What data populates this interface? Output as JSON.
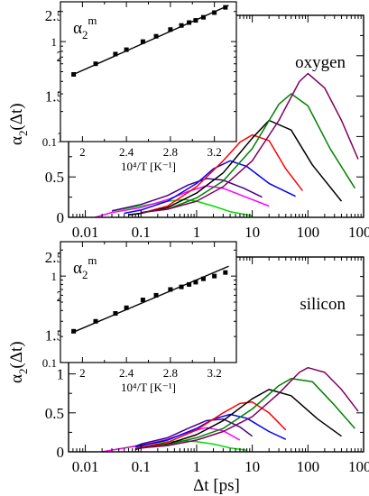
{
  "chart_data": [
    {
      "id": "oxygen",
      "type": "line",
      "annotation": "oxygen",
      "xlabel": "Δt [ps]",
      "ylabel": "α2(Δt)",
      "xscale": "log",
      "xlim": [
        0.005,
        1000
      ],
      "ylim": [
        0,
        2.5
      ],
      "xticks": [
        0.01,
        0.1,
        1,
        10,
        100,
        1000
      ],
      "xticklabels": [
        "0.01",
        "0.1",
        "1",
        "10",
        "100",
        "1000"
      ],
      "yticks": [
        0,
        0.5,
        1,
        1.5,
        2,
        2.5
      ],
      "yticklabels": [
        "0",
        "0.5",
        "1",
        "1.5",
        "2",
        "2.5"
      ],
      "show_xticklabels": false,
      "series": [
        {
          "color": "#00dd00",
          "x": [
            0.03,
            0.1,
            0.3,
            0.6,
            1,
            2,
            4,
            10
          ],
          "y": [
            0.08,
            0.14,
            0.2,
            0.22,
            0.2,
            0.14,
            0.07,
            0.02
          ]
        },
        {
          "color": "#ff00ff",
          "x": [
            0.015,
            0.03,
            0.1,
            0.3,
            0.7,
            1.5,
            3,
            6,
            20
          ],
          "y": [
            0.0,
            0.06,
            0.12,
            0.22,
            0.32,
            0.39,
            0.36,
            0.28,
            0.14
          ]
        },
        {
          "color": "#4b0082",
          "x": [
            0.03,
            0.1,
            0.3,
            0.7,
            1.5,
            3,
            7,
            15
          ],
          "y": [
            0.08,
            0.16,
            0.27,
            0.4,
            0.48,
            0.46,
            0.36,
            0.25
          ]
        },
        {
          "color": "#0000ff",
          "x": [
            0.05,
            0.1,
            0.3,
            1,
            2,
            4,
            8,
            20,
            60
          ],
          "y": [
            0.05,
            0.09,
            0.2,
            0.42,
            0.6,
            0.7,
            0.63,
            0.42,
            0.26
          ]
        },
        {
          "color": "#ff0000",
          "x": [
            0.06,
            0.1,
            0.3,
            1,
            3,
            6,
            10,
            20,
            40,
            80
          ],
          "y": [
            0.03,
            0.05,
            0.14,
            0.38,
            0.7,
            0.93,
            1.02,
            0.95,
            0.6,
            0.33
          ]
        },
        {
          "color": "#000000",
          "x": [
            0.06,
            0.1,
            0.3,
            1,
            3,
            10,
            20,
            50,
            120,
            400
          ],
          "y": [
            0.03,
            0.05,
            0.12,
            0.3,
            0.55,
            0.98,
            1.2,
            1.08,
            0.65,
            0.2
          ]
        },
        {
          "color": "#008000",
          "x": [
            0.1,
            0.3,
            1,
            3,
            10,
            30,
            50,
            100,
            250,
            700
          ],
          "y": [
            0.06,
            0.1,
            0.24,
            0.45,
            0.85,
            1.4,
            1.53,
            1.38,
            0.85,
            0.36
          ]
        },
        {
          "color": "#800060",
          "x": [
            0.1,
            0.3,
            1,
            3,
            10,
            30,
            70,
            100,
            200,
            400,
            800
          ],
          "y": [
            0.06,
            0.1,
            0.2,
            0.38,
            0.7,
            1.2,
            1.68,
            1.78,
            1.6,
            1.2,
            0.72
          ]
        }
      ]
    },
    {
      "id": "oxygen-inset",
      "type": "scatter",
      "label": "α2m",
      "xlabel": "10⁴/T [K⁻¹]",
      "yscale": "log",
      "xlim": [
        1.8,
        3.4
      ],
      "ylim": [
        0.1,
        2.5
      ],
      "xticks": [
        2,
        2.4,
        2.8,
        3.2
      ],
      "xticklabels": [
        "2",
        "2.4",
        "2.8",
        "3.2"
      ],
      "yticks": [
        0.1,
        1
      ],
      "yticklabels": [
        "0.1",
        "1"
      ],
      "x": [
        1.92,
        2.12,
        2.3,
        2.4,
        2.55,
        2.67,
        2.8,
        2.9,
        2.97,
        3.03,
        3.1,
        3.2,
        3.3
      ],
      "y": [
        0.47,
        0.6,
        0.75,
        0.83,
        1.0,
        1.13,
        1.32,
        1.45,
        1.55,
        1.63,
        1.75,
        1.95,
        2.2
      ],
      "fit": {
        "x": [
          1.9,
          3.33
        ],
        "y": [
          0.46,
          2.3
        ]
      }
    },
    {
      "id": "silicon",
      "type": "line",
      "annotation": "silicon",
      "xlabel": "Δt [ps]",
      "ylabel": "α2(Δt)",
      "xscale": "log",
      "xlim": [
        0.005,
        1000
      ],
      "ylim": [
        0,
        2.5
      ],
      "xticks": [
        0.01,
        0.1,
        1,
        10,
        100,
        1000
      ],
      "xticklabels": [
        "0.01",
        "0.1",
        "1",
        "10",
        "100",
        "1000"
      ],
      "yticks": [
        0,
        0.5,
        1,
        1.5,
        2,
        2.5
      ],
      "yticklabels": [
        "0",
        "0.5",
        "1",
        "1.5",
        "2",
        "2.5"
      ],
      "show_xticklabels": true,
      "series": [
        {
          "color": "#00dd00",
          "x": [
            0.05,
            0.1,
            0.3,
            0.6,
            1,
            2,
            4,
            8
          ],
          "y": [
            0.05,
            0.09,
            0.13,
            0.14,
            0.13,
            0.1,
            0.05,
            0.02
          ]
        },
        {
          "color": "#ff00ff",
          "x": [
            0.02,
            0.05,
            0.1,
            0.3,
            0.7,
            1.5,
            3,
            6
          ],
          "y": [
            0.0,
            0.05,
            0.08,
            0.16,
            0.25,
            0.31,
            0.27,
            0.15
          ]
        },
        {
          "color": "#4b0082",
          "x": [
            0.08,
            0.1,
            0.3,
            0.7,
            1.5,
            3,
            6,
            10
          ],
          "y": [
            0.07,
            0.1,
            0.18,
            0.3,
            0.4,
            0.42,
            0.32,
            0.2
          ]
        },
        {
          "color": "#0000ff",
          "x": [
            0.08,
            0.1,
            0.3,
            1,
            2,
            4,
            8,
            20,
            40
          ],
          "y": [
            0.06,
            0.08,
            0.15,
            0.3,
            0.42,
            0.48,
            0.43,
            0.26,
            0.16
          ]
        },
        {
          "color": "#ff0000",
          "x": [
            0.08,
            0.1,
            0.3,
            1,
            3,
            6,
            10,
            20,
            40
          ],
          "y": [
            0.04,
            0.06,
            0.12,
            0.28,
            0.5,
            0.62,
            0.64,
            0.5,
            0.28
          ]
        },
        {
          "color": "#000000",
          "x": [
            0.08,
            0.1,
            0.3,
            1,
            3,
            10,
            20,
            50,
            150,
            400
          ],
          "y": [
            0.03,
            0.05,
            0.1,
            0.22,
            0.4,
            0.68,
            0.8,
            0.72,
            0.42,
            0.2
          ]
        },
        {
          "color": "#008000",
          "x": [
            0.08,
            0.1,
            0.3,
            1,
            3,
            10,
            30,
            50,
            120,
            300,
            700
          ],
          "y": [
            0.03,
            0.05,
            0.09,
            0.18,
            0.3,
            0.55,
            0.85,
            0.94,
            0.9,
            0.6,
            0.3
          ]
        },
        {
          "color": "#800060",
          "x": [
            0.08,
            0.1,
            0.3,
            1,
            3,
            10,
            30,
            70,
            100,
            200,
            400,
            800
          ],
          "y": [
            0.03,
            0.05,
            0.08,
            0.15,
            0.26,
            0.45,
            0.75,
            1.02,
            1.08,
            1.02,
            0.8,
            0.52
          ]
        }
      ]
    },
    {
      "id": "silicon-inset",
      "type": "scatter",
      "label": "α2m",
      "xlabel": "10⁴/T [K⁻¹]",
      "yscale": "log",
      "xlim": [
        1.8,
        3.4
      ],
      "ylim": [
        0.1,
        2.5
      ],
      "xticks": [
        2,
        2.4,
        2.8,
        3.2
      ],
      "xticklabels": [
        "2",
        "2.4",
        "2.8",
        "3.2"
      ],
      "yticks": [
        0.1,
        1
      ],
      "yticklabels": [
        "0.1",
        "1"
      ],
      "x": [
        1.92,
        2.12,
        2.3,
        2.4,
        2.55,
        2.67,
        2.8,
        2.9,
        2.97,
        3.03,
        3.1,
        3.2,
        3.3
      ],
      "y": [
        0.23,
        0.3,
        0.37,
        0.43,
        0.53,
        0.6,
        0.7,
        0.75,
        0.8,
        0.85,
        0.93,
        1.0,
        1.1
      ],
      "fit": {
        "x": [
          1.9,
          3.33
        ],
        "y": [
          0.22,
          1.3
        ]
      }
    }
  ]
}
